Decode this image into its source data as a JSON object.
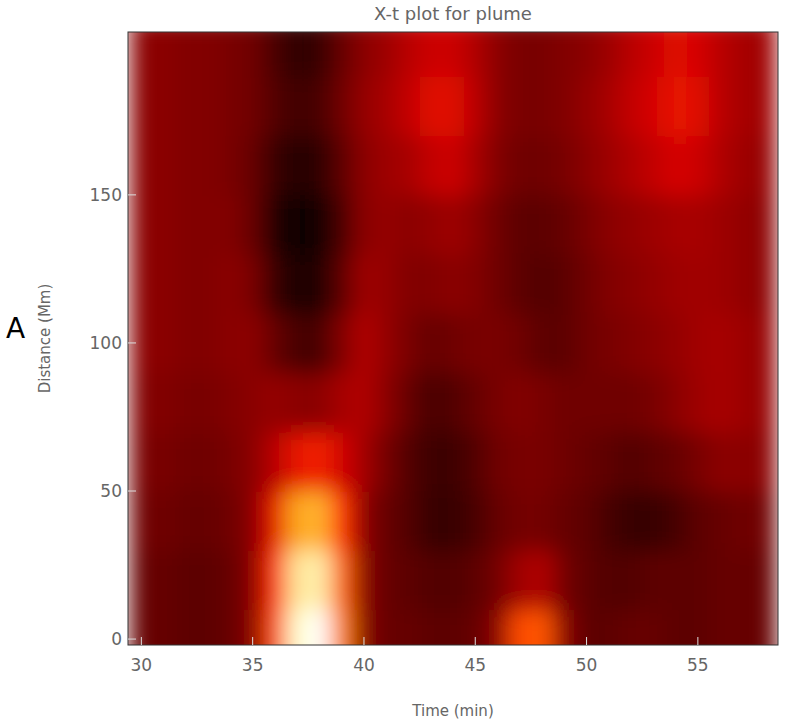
{
  "chart_data": {
    "type": "heatmap",
    "title": "X-t plot for plume",
    "x_label": "Time (min)",
    "y_label": "Distance (Mm)",
    "annotation": "A",
    "xlim": [
      29.4,
      58.6
    ],
    "ylim": [
      -2,
      205
    ],
    "xticks": [
      30,
      35,
      40,
      45,
      50,
      55
    ],
    "yticks": [
      0,
      50,
      100,
      150
    ],
    "zlim": [
      0,
      1
    ],
    "x_bins": [
      29.5,
      30.5,
      31.5,
      32.5,
      33.5,
      34.5,
      35.5,
      36.5,
      37.5,
      38.5,
      39.5,
      40.5,
      41.5,
      42.5,
      43.5,
      44.5,
      45.5,
      46.5,
      47.5,
      48.5,
      49.5,
      50.5,
      51.5,
      52.5,
      53.5,
      54.5,
      55.5,
      56.5,
      57.5,
      58.5
    ],
    "y_bins": [
      -10,
      10,
      30,
      50,
      70,
      90,
      110,
      130,
      150,
      170,
      190,
      210
    ],
    "cells": [
      [
        0.22,
        0.22,
        0.2,
        0.2,
        0.22,
        0.3,
        0.6,
        0.95,
        1.0,
        0.7,
        0.3,
        0.22,
        0.22,
        0.2,
        0.2,
        0.22,
        0.3,
        0.6,
        0.62,
        0.3,
        0.2,
        0.2,
        0.22,
        0.22,
        0.2,
        0.2,
        0.22,
        0.22,
        0.22
      ],
      [
        0.22,
        0.22,
        0.2,
        0.2,
        0.22,
        0.3,
        0.55,
        0.9,
        0.92,
        0.65,
        0.3,
        0.22,
        0.2,
        0.18,
        0.18,
        0.2,
        0.25,
        0.35,
        0.38,
        0.25,
        0.2,
        0.18,
        0.18,
        0.2,
        0.2,
        0.2,
        0.22,
        0.22,
        0.22
      ],
      [
        0.24,
        0.24,
        0.22,
        0.22,
        0.24,
        0.3,
        0.5,
        0.78,
        0.8,
        0.55,
        0.3,
        0.22,
        0.18,
        0.12,
        0.12,
        0.16,
        0.22,
        0.25,
        0.25,
        0.22,
        0.2,
        0.15,
        0.12,
        0.12,
        0.15,
        0.2,
        0.22,
        0.24,
        0.24
      ],
      [
        0.26,
        0.26,
        0.24,
        0.24,
        0.26,
        0.3,
        0.4,
        0.5,
        0.52,
        0.45,
        0.35,
        0.25,
        0.18,
        0.13,
        0.13,
        0.18,
        0.24,
        0.26,
        0.26,
        0.24,
        0.22,
        0.2,
        0.18,
        0.2,
        0.22,
        0.26,
        0.3,
        0.3,
        0.3
      ],
      [
        0.28,
        0.28,
        0.26,
        0.26,
        0.28,
        0.3,
        0.32,
        0.3,
        0.3,
        0.36,
        0.38,
        0.3,
        0.22,
        0.16,
        0.18,
        0.22,
        0.26,
        0.28,
        0.26,
        0.24,
        0.24,
        0.24,
        0.24,
        0.26,
        0.3,
        0.34,
        0.36,
        0.34,
        0.32
      ],
      [
        0.3,
        0.3,
        0.28,
        0.28,
        0.3,
        0.3,
        0.22,
        0.15,
        0.16,
        0.28,
        0.38,
        0.32,
        0.26,
        0.22,
        0.24,
        0.26,
        0.26,
        0.24,
        0.2,
        0.2,
        0.24,
        0.26,
        0.28,
        0.3,
        0.32,
        0.35,
        0.36,
        0.34,
        0.32
      ],
      [
        0.3,
        0.3,
        0.28,
        0.28,
        0.3,
        0.26,
        0.12,
        0.06,
        0.07,
        0.2,
        0.34,
        0.32,
        0.28,
        0.28,
        0.3,
        0.28,
        0.24,
        0.2,
        0.18,
        0.2,
        0.24,
        0.28,
        0.3,
        0.32,
        0.34,
        0.35,
        0.34,
        0.32,
        0.3
      ],
      [
        0.3,
        0.3,
        0.28,
        0.28,
        0.28,
        0.22,
        0.07,
        0.03,
        0.04,
        0.16,
        0.3,
        0.32,
        0.3,
        0.32,
        0.34,
        0.3,
        0.24,
        0.2,
        0.2,
        0.22,
        0.26,
        0.3,
        0.32,
        0.34,
        0.36,
        0.36,
        0.34,
        0.32,
        0.3
      ],
      [
        0.3,
        0.3,
        0.28,
        0.28,
        0.26,
        0.22,
        0.12,
        0.08,
        0.1,
        0.2,
        0.3,
        0.34,
        0.36,
        0.42,
        0.44,
        0.36,
        0.28,
        0.24,
        0.24,
        0.26,
        0.3,
        0.34,
        0.38,
        0.42,
        0.46,
        0.44,
        0.38,
        0.34,
        0.32
      ],
      [
        0.3,
        0.3,
        0.28,
        0.28,
        0.26,
        0.24,
        0.18,
        0.14,
        0.16,
        0.24,
        0.32,
        0.36,
        0.42,
        0.48,
        0.48,
        0.4,
        0.3,
        0.26,
        0.26,
        0.28,
        0.32,
        0.36,
        0.42,
        0.46,
        0.5,
        0.48,
        0.4,
        0.36,
        0.34
      ],
      [
        0.3,
        0.3,
        0.28,
        0.28,
        0.26,
        0.24,
        0.16,
        0.1,
        0.12,
        0.22,
        0.3,
        0.34,
        0.4,
        0.44,
        0.44,
        0.38,
        0.3,
        0.26,
        0.26,
        0.28,
        0.3,
        0.34,
        0.4,
        0.44,
        0.48,
        0.46,
        0.4,
        0.36,
        0.34
      ]
    ]
  }
}
